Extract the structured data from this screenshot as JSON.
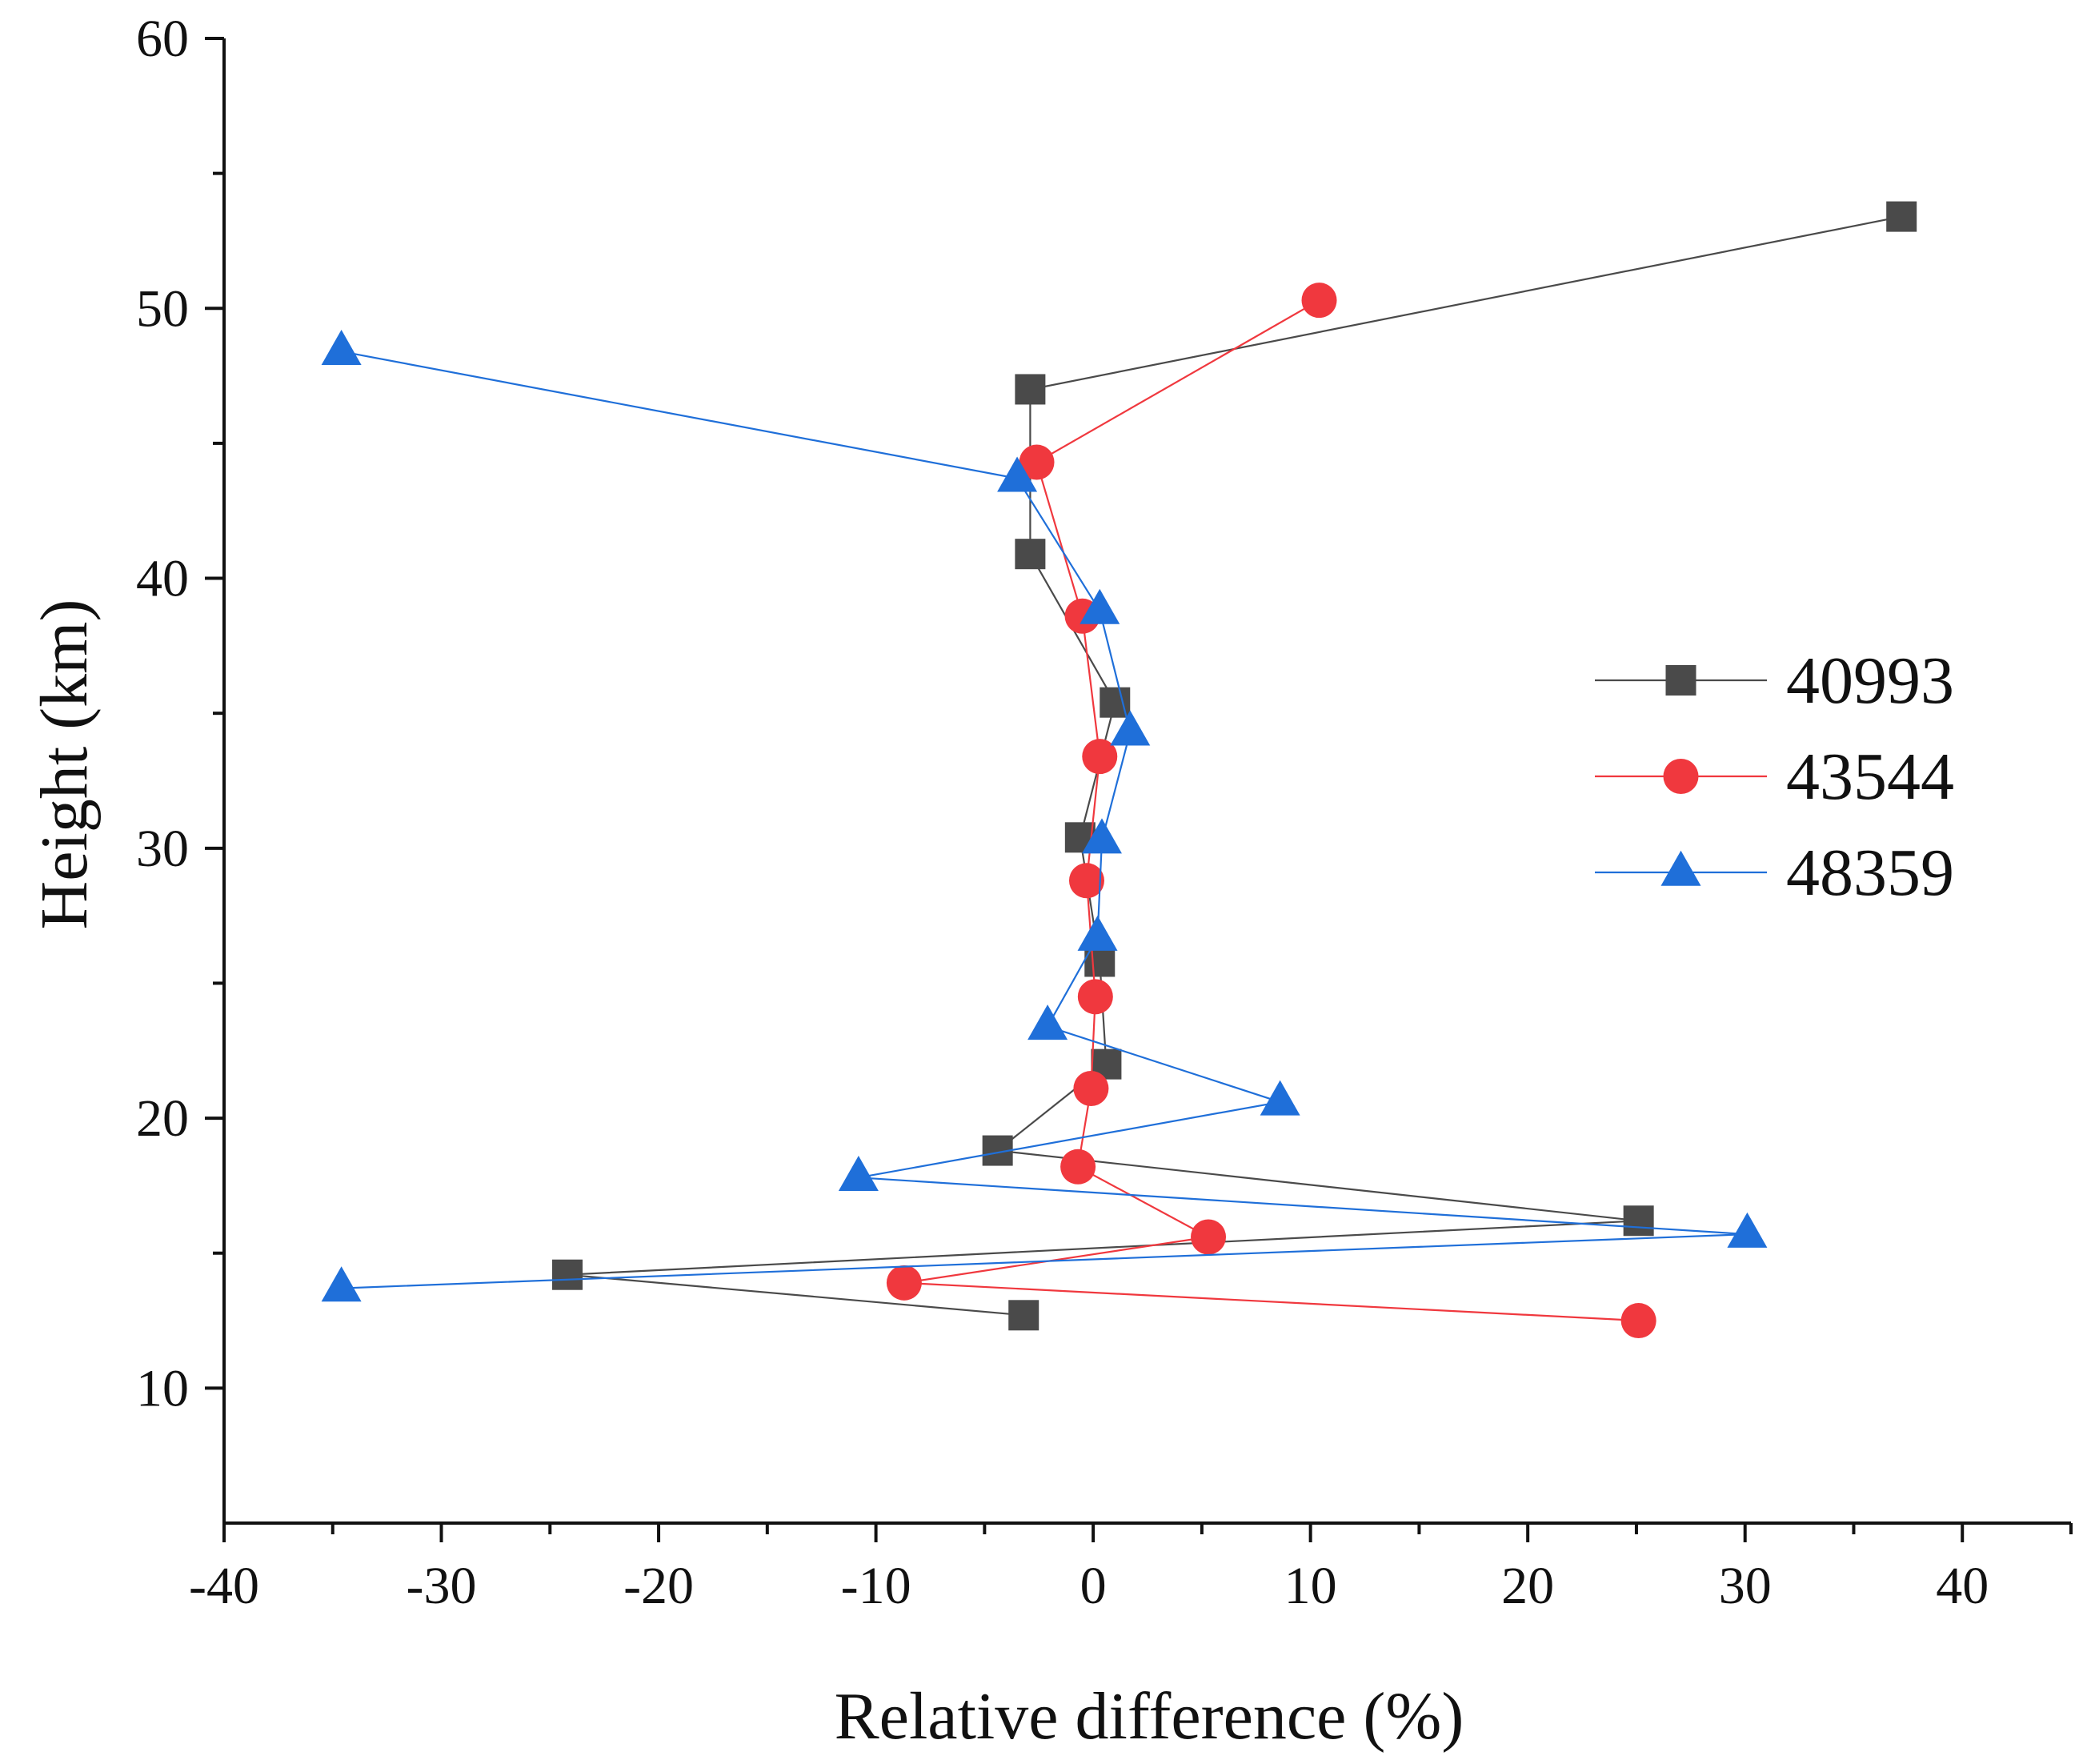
{
  "chart_data": {
    "type": "line",
    "title": "",
    "xlabel": "Relative difference (%)",
    "ylabel": "Height (km)",
    "xlim": [
      -40,
      45
    ],
    "ylim": [
      5,
      60
    ],
    "x_ticks": [
      -40,
      -30,
      -20,
      -10,
      0,
      10,
      20,
      30,
      40
    ],
    "x_tick_labels": [
      "-40",
      "-30",
      "-20",
      "-10",
      "0",
      "10",
      "20",
      "30",
      "40"
    ],
    "y_ticks": [
      10,
      20,
      30,
      40,
      50,
      60
    ],
    "y_tick_labels": [
      "10",
      "20",
      "30",
      "40",
      "50",
      "60"
    ],
    "x_minor_ticks": [
      -35,
      -25,
      -15,
      -5,
      5,
      15,
      25,
      35,
      45
    ],
    "y_minor_ticks": [
      15,
      25,
      35,
      45,
      55
    ],
    "grid": false,
    "legend_position": "right",
    "series": [
      {
        "name": "40993",
        "marker": "square",
        "color": "#4a4a4a",
        "points": [
          {
            "x": -3.2,
            "y": 12.7
          },
          {
            "x": -24.2,
            "y": 14.2
          },
          {
            "x": 25.1,
            "y": 16.2
          },
          {
            "x": -4.4,
            "y": 18.8
          },
          {
            "x": 0.6,
            "y": 22.0
          },
          {
            "x": 0.3,
            "y": 25.8
          },
          {
            "x": -0.6,
            "y": 30.4
          },
          {
            "x": 1.0,
            "y": 35.4
          },
          {
            "x": -2.9,
            "y": 40.9
          },
          {
            "x": -2.9,
            "y": 47.0
          },
          {
            "x": 37.2,
            "y": 53.4
          }
        ]
      },
      {
        "name": "43544",
        "marker": "circle",
        "color": "#f0383e",
        "points": [
          {
            "x": 25.1,
            "y": 12.5
          },
          {
            "x": -8.7,
            "y": 13.9
          },
          {
            "x": 5.3,
            "y": 15.6
          },
          {
            "x": -0.7,
            "y": 18.2
          },
          {
            "x": -0.1,
            "y": 21.1
          },
          {
            "x": 0.1,
            "y": 24.5
          },
          {
            "x": -0.3,
            "y": 28.8
          },
          {
            "x": 0.3,
            "y": 33.4
          },
          {
            "x": -0.5,
            "y": 38.6
          },
          {
            "x": -2.6,
            "y": 44.3
          },
          {
            "x": 10.4,
            "y": 50.3
          }
        ]
      },
      {
        "name": "48359",
        "marker": "triangle",
        "color": "#1f6fd9",
        "points": [
          {
            "x": -34.6,
            "y": 13.7
          },
          {
            "x": 30.1,
            "y": 15.7
          },
          {
            "x": -10.8,
            "y": 17.8
          },
          {
            "x": 8.6,
            "y": 20.6
          },
          {
            "x": -2.1,
            "y": 23.4
          },
          {
            "x": 0.2,
            "y": 26.7
          },
          {
            "x": 0.4,
            "y": 30.3
          },
          {
            "x": 1.7,
            "y": 34.3
          },
          {
            "x": 0.3,
            "y": 38.8
          },
          {
            "x": -3.5,
            "y": 43.7
          },
          {
            "x": -34.6,
            "y": 48.4
          }
        ]
      }
    ]
  }
}
